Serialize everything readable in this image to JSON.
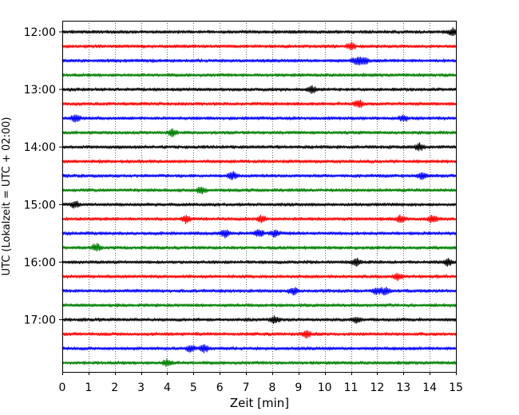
{
  "chart_data": {
    "type": "line",
    "title": "",
    "xlabel": "Zeit  [min]",
    "ylabel": "UTC (Lokalzeit = UTC + 02:00)",
    "xlim": [
      0,
      15
    ],
    "x_ticks": [
      0,
      1,
      2,
      3,
      4,
      5,
      6,
      7,
      8,
      9,
      10,
      11,
      12,
      13,
      14,
      15
    ],
    "y_tick_labels": [
      "12:00",
      "13:00",
      "14:00",
      "15:00",
      "16:00",
      "17:00"
    ],
    "grid": "vertical dotted lines at each minute",
    "legend": "none",
    "trace_interval_minutes": 15,
    "first_trace_utc": "12:00",
    "last_trace_utc": "17:45",
    "trace_color_cycle": [
      "#000000",
      "#ff0000",
      "#0000ff",
      "#008000"
    ],
    "series": [
      {
        "start_utc": "12:00",
        "color": "#000000",
        "bursts_min": [
          14.9
        ]
      },
      {
        "start_utc": "12:15",
        "color": "#ff0000",
        "bursts_min": [
          11.0
        ]
      },
      {
        "start_utc": "12:30",
        "color": "#0000ff",
        "bursts_min": [
          11.2,
          11.5
        ]
      },
      {
        "start_utc": "12:45",
        "color": "#008000",
        "bursts_min": []
      },
      {
        "start_utc": "13:00",
        "color": "#000000",
        "bursts_min": [
          9.5
        ]
      },
      {
        "start_utc": "13:15",
        "color": "#ff0000",
        "bursts_min": [
          11.3
        ]
      },
      {
        "start_utc": "13:30",
        "color": "#0000ff",
        "bursts_min": [
          0.5,
          13.0
        ]
      },
      {
        "start_utc": "13:45",
        "color": "#008000",
        "bursts_min": [
          4.2
        ]
      },
      {
        "start_utc": "14:00",
        "color": "#000000",
        "bursts_min": [
          13.6
        ]
      },
      {
        "start_utc": "14:15",
        "color": "#ff0000",
        "bursts_min": []
      },
      {
        "start_utc": "14:30",
        "color": "#0000ff",
        "bursts_min": [
          6.5,
          13.7
        ]
      },
      {
        "start_utc": "14:45",
        "color": "#008000",
        "bursts_min": [
          5.3
        ]
      },
      {
        "start_utc": "15:00",
        "color": "#000000",
        "bursts_min": [
          0.5
        ]
      },
      {
        "start_utc": "15:15",
        "color": "#ff0000",
        "bursts_min": [
          4.7,
          7.6,
          12.9,
          14.1
        ]
      },
      {
        "start_utc": "15:30",
        "color": "#0000ff",
        "bursts_min": [
          6.2,
          7.5,
          8.1
        ]
      },
      {
        "start_utc": "15:45",
        "color": "#008000",
        "bursts_min": [
          1.3
        ]
      },
      {
        "start_utc": "16:00",
        "color": "#000000",
        "bursts_min": [
          11.2,
          14.7
        ]
      },
      {
        "start_utc": "16:15",
        "color": "#ff0000",
        "bursts_min": [
          12.8
        ]
      },
      {
        "start_utc": "16:30",
        "color": "#0000ff",
        "bursts_min": [
          8.8,
          12.0,
          12.3
        ]
      },
      {
        "start_utc": "16:45",
        "color": "#008000",
        "bursts_min": []
      },
      {
        "start_utc": "17:00",
        "color": "#000000",
        "bursts_min": [
          8.1,
          11.2
        ]
      },
      {
        "start_utc": "17:15",
        "color": "#ff0000",
        "bursts_min": [
          9.3
        ]
      },
      {
        "start_utc": "17:30",
        "color": "#0000ff",
        "bursts_min": [
          4.9,
          5.4
        ]
      },
      {
        "start_utc": "17:45",
        "color": "#008000",
        "bursts_min": [
          4.0
        ]
      }
    ]
  }
}
